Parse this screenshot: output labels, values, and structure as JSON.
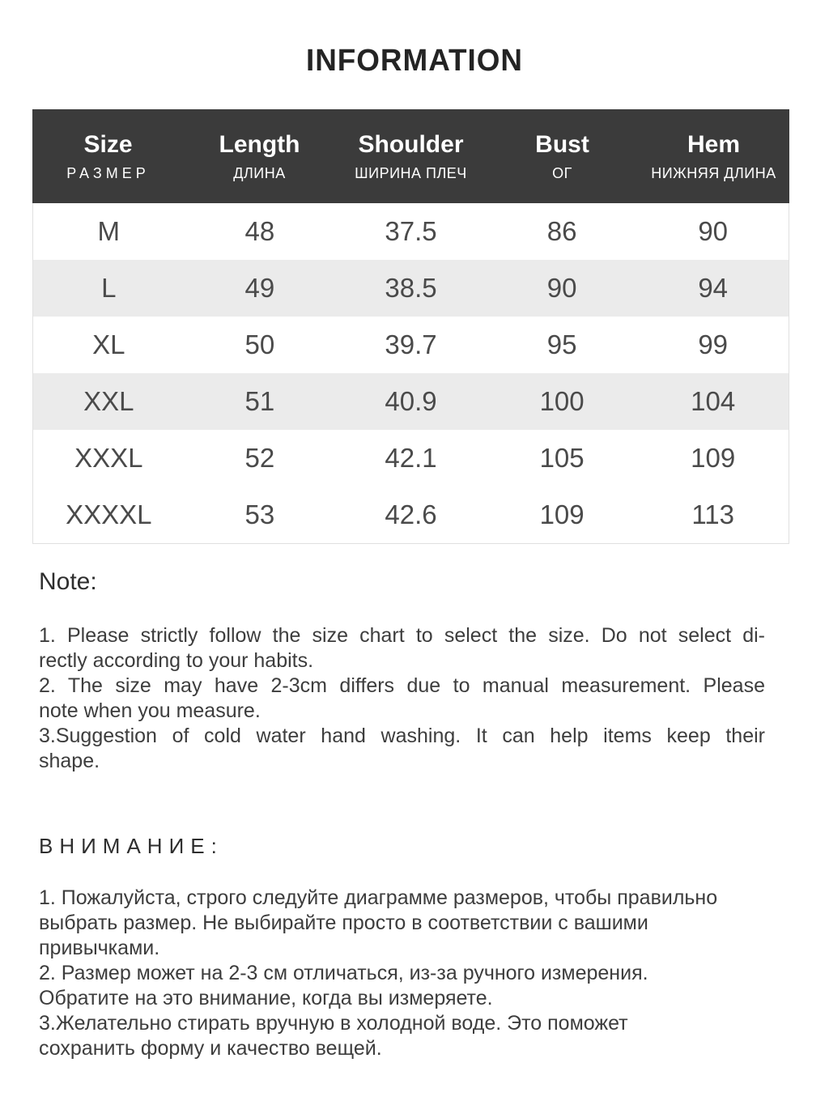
{
  "page_title": "INFORMATION",
  "chart_data": {
    "type": "table",
    "columns": [
      {
        "en": "Size",
        "ru": "РАЗМЕР"
      },
      {
        "en": "Length",
        "ru": "ДЛИНА"
      },
      {
        "en": "Shoulder",
        "ru": "ШИРИНА ПЛЕЧ"
      },
      {
        "en": "Bust",
        "ru": "ОГ"
      },
      {
        "en": "Hem",
        "ru": "НИЖНЯЯ ДЛИНА"
      }
    ],
    "rows": [
      [
        "M",
        "48",
        "37.5",
        "86",
        "90"
      ],
      [
        "L",
        "49",
        "38.5",
        "90",
        "94"
      ],
      [
        "XL",
        "50",
        "39.7",
        "95",
        "99"
      ],
      [
        "XXL",
        "51",
        "40.9",
        "100",
        "104"
      ],
      [
        "XXXL",
        "52",
        "42.1",
        "105",
        "109"
      ],
      [
        "XXXXL",
        "53",
        "42.6",
        "109",
        "113"
      ]
    ],
    "shaded_row_indexes": [
      1,
      3
    ]
  },
  "note": {
    "heading": "Note:",
    "lines": [
      {
        "text": "1. Please strictly follow the size chart to select the size. Do not select di-",
        "fill": true
      },
      {
        "text": "rectly according to your habits.",
        "fill": false
      },
      {
        "text": "2. The size may have 2-3cm differs due to manual measurement. Please",
        "fill": true
      },
      {
        "text": "note when you measure.",
        "fill": false
      },
      {
        "text": "3.Suggestion of cold water hand washing. It can help items keep their",
        "fill": true
      },
      {
        "text": "shape.",
        "fill": false
      }
    ]
  },
  "attention": {
    "heading": "ВНИМАНИЕ:",
    "lines": [
      {
        "text": "1. Пожалуйста, строго следуйте диаграмме размеров, чтобы правильно",
        "fill": false
      },
      {
        "text": "выбрать размер. Не выбирайте просто в соответствии с вашими",
        "fill": false
      },
      {
        "text": "привычками.",
        "fill": false
      },
      {
        "text": "2. Размер может на 2-3 см отличаться, из-за ручного измерения.",
        "fill": false
      },
      {
        "text": "Обратите на это внимание, когда вы измеряете.",
        "fill": false
      },
      {
        "text": "3.Желательно стирать вручную в холодной воде. Это поможет",
        "fill": false
      },
      {
        "text": "сохранить форму и качество вещей.",
        "fill": false
      }
    ]
  },
  "colors": {
    "header_bg": "#3b3b3b",
    "header_text": "#ffffff",
    "shaded_row_bg": "#ebebeb",
    "title_text": "#242424",
    "body_text": "#3d3d3d",
    "table_text": "#4a4a4a"
  }
}
